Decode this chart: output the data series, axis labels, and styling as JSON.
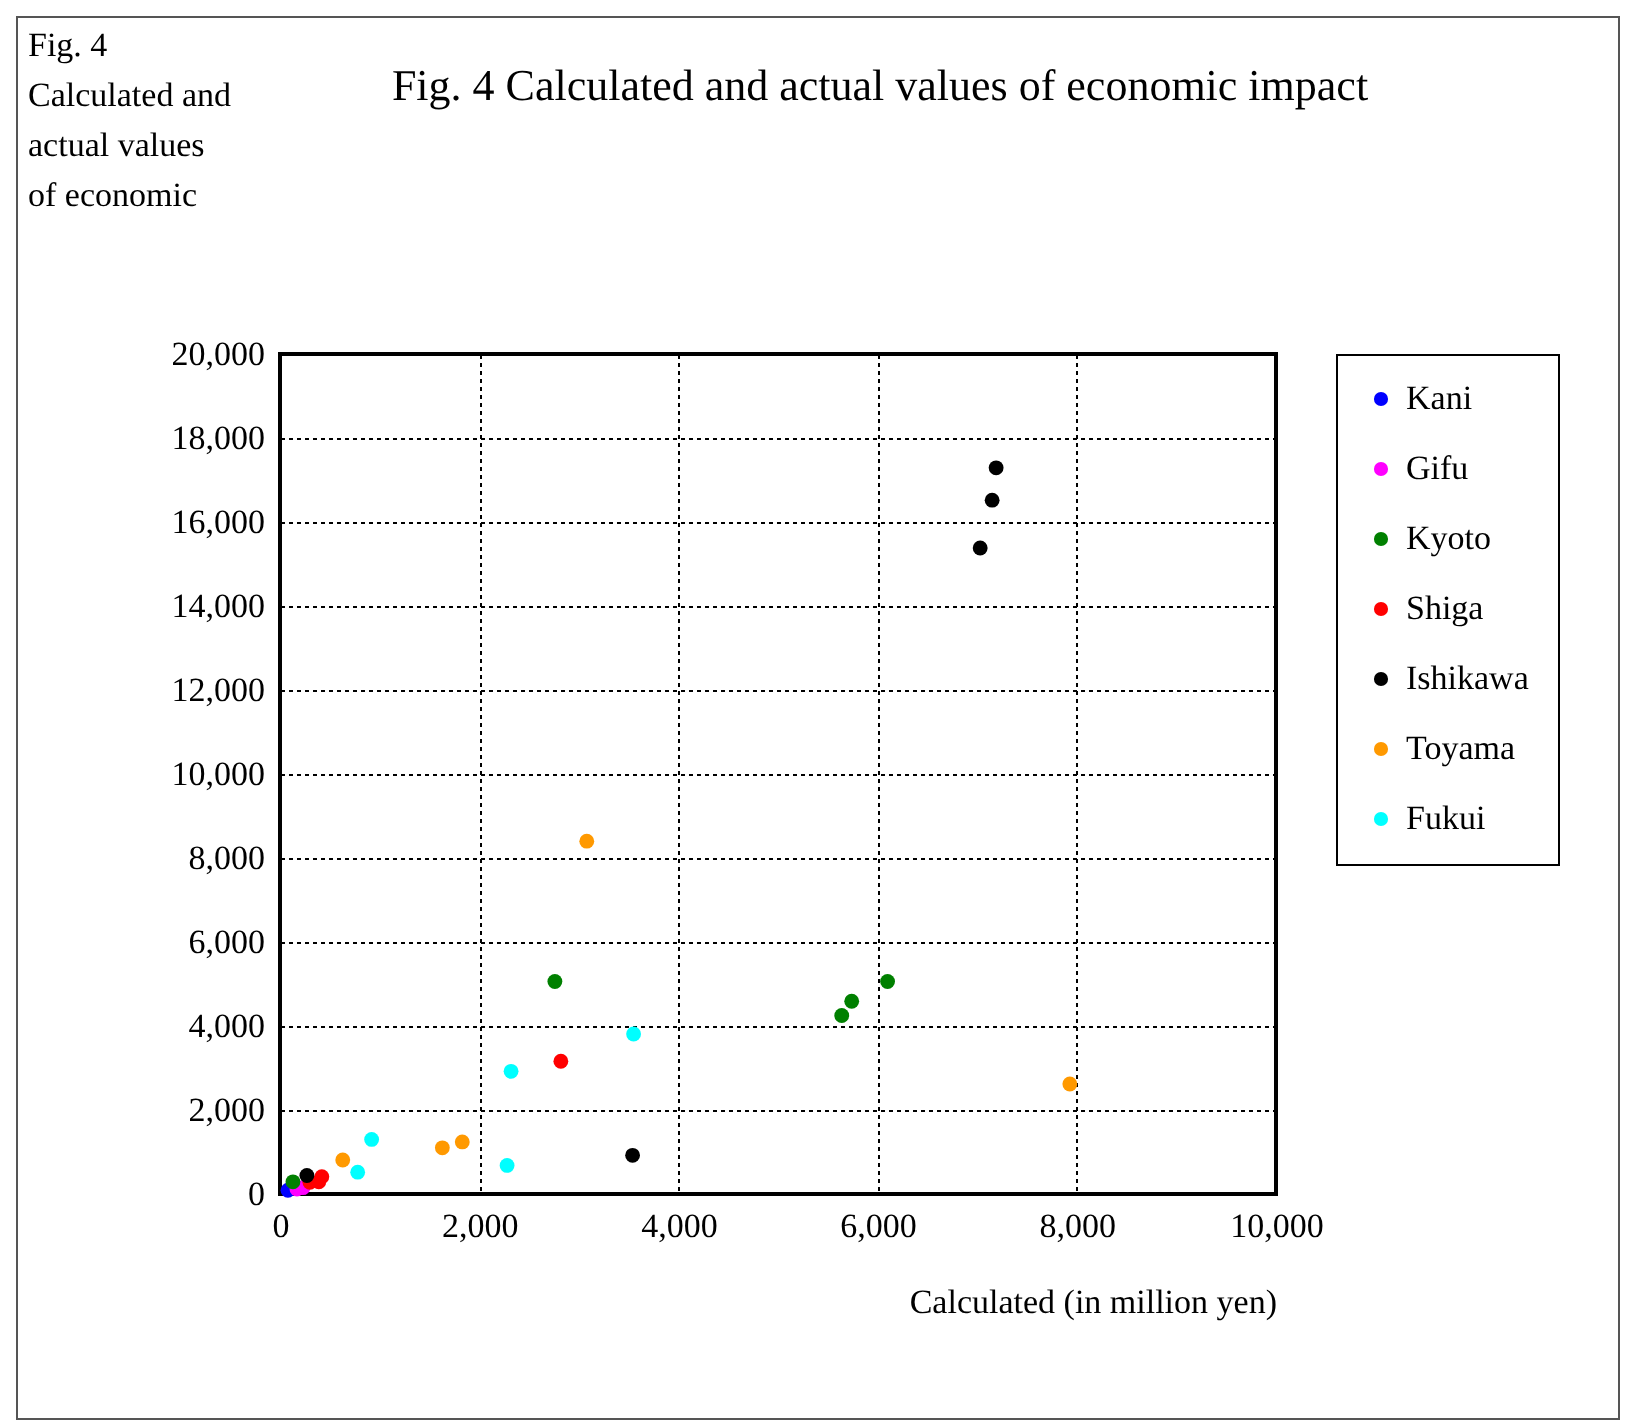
{
  "chart_data": {
    "type": "scatter",
    "title": "Fig. 4 Calculated and actual values of economic impact",
    "ylabel": "Fig. 4 Calculated and actual values of economic",
    "xlabel": "Calculated (in million yen)",
    "xlim": [
      0,
      10000
    ],
    "xticks": [
      {
        "value": 0,
        "label": "0"
      },
      {
        "value": 2000,
        "label": "2,000"
      },
      {
        "value": 4000,
        "label": "4,000"
      },
      {
        "value": 6000,
        "label": "6,000"
      },
      {
        "value": 8000,
        "label": "8,000"
      },
      {
        "value": 10000,
        "label": "10,000"
      }
    ],
    "ylim": [
      0,
      20000
    ],
    "yticks": [
      {
        "value": 0,
        "label": "0"
      },
      {
        "value": 2000,
        "label": "2,000"
      },
      {
        "value": 4000,
        "label": "4,000"
      },
      {
        "value": 6000,
        "label": "6,000"
      },
      {
        "value": 8000,
        "label": "8,000"
      },
      {
        "value": 10000,
        "label": "10,000"
      },
      {
        "value": 12000,
        "label": "12,000"
      },
      {
        "value": 14000,
        "label": "14,000"
      },
      {
        "value": 16000,
        "label": "16,000"
      },
      {
        "value": 18000,
        "label": "18,000"
      },
      {
        "value": 20000,
        "label": "20,000"
      }
    ],
    "grid": true,
    "legend": "right",
    "marker": "circle",
    "line_style": "dotted",
    "series": [
      {
        "name": "Kani",
        "color": "#0000ff",
        "x": [
          80
        ],
        "values": [
          90
        ]
      },
      {
        "name": "Gifu",
        "color": "#ff00ff",
        "x": [
          170,
          230
        ],
        "values": [
          120,
          150
        ]
      },
      {
        "name": "Kyoto",
        "color": "#008000",
        "x": [
          130,
          2760,
          5640,
          5740,
          6100
        ],
        "values": [
          290,
          5060,
          4250,
          4590,
          5060
        ]
      },
      {
        "name": "Shiga",
        "color": "#ff0000",
        "x": [
          300,
          390,
          420,
          2820
        ],
        "values": [
          280,
          290,
          410,
          3160
        ]
      },
      {
        "name": "Ishikawa",
        "color": "#000000",
        "x": [
          270,
          3540,
          7030,
          7150,
          7190
        ],
        "values": [
          440,
          920,
          15380,
          16520,
          17290
        ]
      },
      {
        "name": "Toyama",
        "color": "#ff9900",
        "x": [
          630,
          1630,
          1830,
          3080,
          7930
        ],
        "values": [
          810,
          1100,
          1240,
          8400,
          2620
        ]
      },
      {
        "name": "Fukui",
        "color": "#00ffff",
        "x": [
          780,
          920,
          2280,
          2320,
          3550
        ],
        "values": [
          520,
          1300,
          680,
          2920,
          3810
        ]
      }
    ]
  }
}
